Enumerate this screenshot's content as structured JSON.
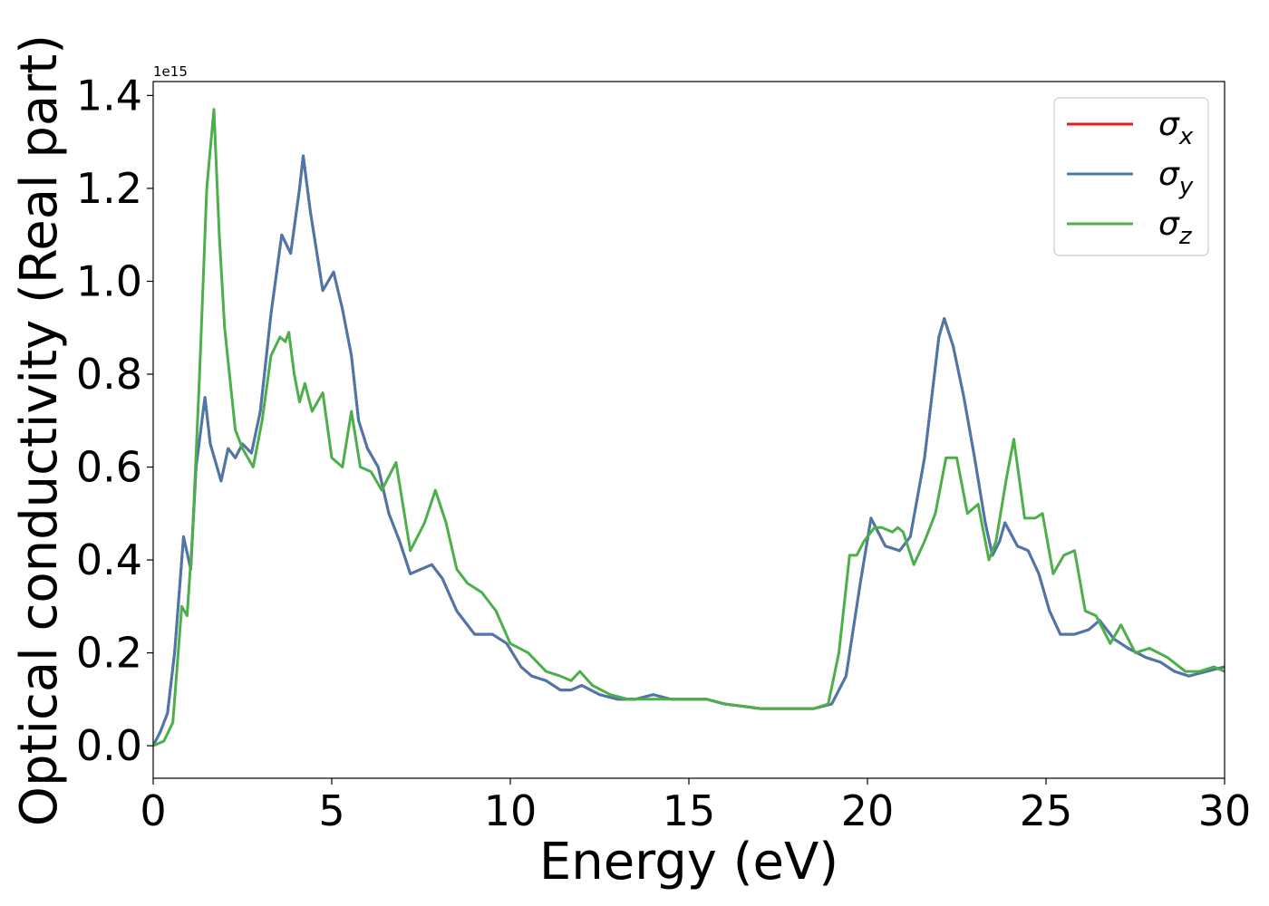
{
  "chart_data": {
    "type": "line",
    "xlabel": "Energy (eV)",
    "ylabel": "Optical conductivity (Real part)",
    "y_offset_label": "1e15",
    "xlim": [
      0,
      30
    ],
    "ylim": [
      -0.07,
      1.43
    ],
    "x_ticks": [
      0,
      5,
      10,
      15,
      20,
      25,
      30
    ],
    "x_tick_labels": [
      "0",
      "5",
      "10",
      "15",
      "20",
      "25",
      "30"
    ],
    "y_ticks": [
      0.0,
      0.2,
      0.4,
      0.6,
      0.8,
      1.0,
      1.2,
      1.4
    ],
    "y_tick_labels": [
      "0.0",
      "0.2",
      "0.4",
      "0.6",
      "0.8",
      "1.0",
      "1.2",
      "1.4"
    ],
    "grid": false,
    "legend_position": "top-right",
    "series": [
      {
        "name": "σx",
        "legend_base": "σ",
        "legend_sub": "x",
        "color": "#e41a1c",
        "x": [
          0,
          0.2,
          0.4,
          0.6,
          0.85,
          1.05,
          1.2,
          1.45,
          1.6,
          1.9,
          2.1,
          2.3,
          2.5,
          2.75,
          3.0,
          3.3,
          3.6,
          3.85,
          4.1,
          4.2,
          4.4,
          4.75,
          5.05,
          5.3,
          5.55,
          5.75,
          6.0,
          6.3,
          6.6,
          6.9,
          7.2,
          7.5,
          7.8,
          8.1,
          8.5,
          9.0,
          9.5,
          9.9,
          10.3,
          10.6,
          11.0,
          11.4,
          11.7,
          12.0,
          12.5,
          13.0,
          13.5,
          14.0,
          14.5,
          15.0,
          15.5,
          16.0,
          16.5,
          17.0,
          17.5,
          18.0,
          18.5,
          19.0,
          19.4,
          19.8,
          20.1,
          20.3,
          20.5,
          20.9,
          21.2,
          21.6,
          22.0,
          22.15,
          22.4,
          22.7,
          23.0,
          23.3,
          23.5,
          23.7,
          23.85,
          24.2,
          24.5,
          24.8,
          25.1,
          25.4,
          25.8,
          26.2,
          26.5,
          26.9,
          27.3,
          27.8,
          28.2,
          28.6,
          29.0,
          29.5,
          30.0
        ],
        "values": [
          0.0,
          0.03,
          0.07,
          0.2,
          0.45,
          0.38,
          0.6,
          0.75,
          0.65,
          0.57,
          0.64,
          0.62,
          0.65,
          0.63,
          0.72,
          0.93,
          1.1,
          1.06,
          1.2,
          1.27,
          1.15,
          0.98,
          1.02,
          0.94,
          0.84,
          0.7,
          0.64,
          0.6,
          0.5,
          0.44,
          0.37,
          0.38,
          0.39,
          0.36,
          0.29,
          0.24,
          0.24,
          0.22,
          0.17,
          0.15,
          0.14,
          0.12,
          0.12,
          0.13,
          0.11,
          0.1,
          0.1,
          0.11,
          0.1,
          0.1,
          0.1,
          0.09,
          0.085,
          0.08,
          0.08,
          0.08,
          0.08,
          0.09,
          0.15,
          0.35,
          0.49,
          0.46,
          0.43,
          0.42,
          0.45,
          0.62,
          0.88,
          0.92,
          0.86,
          0.75,
          0.62,
          0.48,
          0.41,
          0.44,
          0.48,
          0.43,
          0.42,
          0.37,
          0.29,
          0.24,
          0.24,
          0.25,
          0.27,
          0.23,
          0.21,
          0.19,
          0.18,
          0.16,
          0.15,
          0.16,
          0.17
        ]
      },
      {
        "name": "σy",
        "legend_base": "σ",
        "legend_sub": "y",
        "color": "#4a78aa",
        "x": [
          0,
          0.2,
          0.4,
          0.6,
          0.85,
          1.05,
          1.2,
          1.45,
          1.6,
          1.9,
          2.1,
          2.3,
          2.5,
          2.75,
          3.0,
          3.3,
          3.6,
          3.85,
          4.1,
          4.2,
          4.4,
          4.75,
          5.05,
          5.3,
          5.55,
          5.75,
          6.0,
          6.3,
          6.6,
          6.9,
          7.2,
          7.5,
          7.8,
          8.1,
          8.5,
          9.0,
          9.5,
          9.9,
          10.3,
          10.6,
          11.0,
          11.4,
          11.7,
          12.0,
          12.5,
          13.0,
          13.5,
          14.0,
          14.5,
          15.0,
          15.5,
          16.0,
          16.5,
          17.0,
          17.5,
          18.0,
          18.5,
          19.0,
          19.4,
          19.8,
          20.1,
          20.3,
          20.5,
          20.9,
          21.2,
          21.6,
          22.0,
          22.15,
          22.4,
          22.7,
          23.0,
          23.3,
          23.5,
          23.7,
          23.85,
          24.2,
          24.5,
          24.8,
          25.1,
          25.4,
          25.8,
          26.2,
          26.5,
          26.9,
          27.3,
          27.8,
          28.2,
          28.6,
          29.0,
          29.5,
          30.0
        ],
        "values": [
          0.0,
          0.03,
          0.07,
          0.2,
          0.45,
          0.38,
          0.6,
          0.75,
          0.65,
          0.57,
          0.64,
          0.62,
          0.65,
          0.63,
          0.72,
          0.93,
          1.1,
          1.06,
          1.2,
          1.27,
          1.15,
          0.98,
          1.02,
          0.94,
          0.84,
          0.7,
          0.64,
          0.6,
          0.5,
          0.44,
          0.37,
          0.38,
          0.39,
          0.36,
          0.29,
          0.24,
          0.24,
          0.22,
          0.17,
          0.15,
          0.14,
          0.12,
          0.12,
          0.13,
          0.11,
          0.1,
          0.1,
          0.11,
          0.1,
          0.1,
          0.1,
          0.09,
          0.085,
          0.08,
          0.08,
          0.08,
          0.08,
          0.09,
          0.15,
          0.35,
          0.49,
          0.46,
          0.43,
          0.42,
          0.45,
          0.62,
          0.88,
          0.92,
          0.86,
          0.75,
          0.62,
          0.48,
          0.41,
          0.44,
          0.48,
          0.43,
          0.42,
          0.37,
          0.29,
          0.24,
          0.24,
          0.25,
          0.27,
          0.23,
          0.21,
          0.19,
          0.18,
          0.16,
          0.15,
          0.16,
          0.17
        ]
      },
      {
        "name": "σz",
        "legend_base": "σ",
        "legend_sub": "z",
        "color": "#4daf4a",
        "x": [
          0,
          0.3,
          0.55,
          0.8,
          0.95,
          1.1,
          1.3,
          1.5,
          1.7,
          1.85,
          2.0,
          2.3,
          2.5,
          2.8,
          3.05,
          3.3,
          3.55,
          3.7,
          3.8,
          3.95,
          4.1,
          4.25,
          4.45,
          4.75,
          5.0,
          5.3,
          5.55,
          5.8,
          6.1,
          6.4,
          6.8,
          7.2,
          7.6,
          7.9,
          8.2,
          8.5,
          8.8,
          9.2,
          9.6,
          10.0,
          10.5,
          11.0,
          11.4,
          11.7,
          11.95,
          12.3,
          12.8,
          13.3,
          13.8,
          14.5,
          15.0,
          15.5,
          16.0,
          16.5,
          17.0,
          17.5,
          18.0,
          18.5,
          18.9,
          19.2,
          19.5,
          19.7,
          19.9,
          20.2,
          20.4,
          20.7,
          20.85,
          21.0,
          21.3,
          21.6,
          21.9,
          22.2,
          22.5,
          22.8,
          23.1,
          23.4,
          23.6,
          23.9,
          24.1,
          24.4,
          24.7,
          24.9,
          25.2,
          25.5,
          25.8,
          26.1,
          26.4,
          26.8,
          27.1,
          27.5,
          27.9,
          28.4,
          28.9,
          29.3,
          29.7,
          30.0
        ],
        "values": [
          0.0,
          0.01,
          0.05,
          0.3,
          0.28,
          0.45,
          0.8,
          1.2,
          1.37,
          1.1,
          0.9,
          0.68,
          0.64,
          0.6,
          0.7,
          0.84,
          0.88,
          0.87,
          0.89,
          0.8,
          0.74,
          0.78,
          0.72,
          0.76,
          0.62,
          0.6,
          0.72,
          0.6,
          0.59,
          0.55,
          0.61,
          0.42,
          0.48,
          0.55,
          0.48,
          0.38,
          0.35,
          0.33,
          0.29,
          0.22,
          0.2,
          0.16,
          0.15,
          0.14,
          0.16,
          0.13,
          0.11,
          0.1,
          0.1,
          0.1,
          0.1,
          0.1,
          0.09,
          0.085,
          0.08,
          0.08,
          0.08,
          0.08,
          0.09,
          0.2,
          0.41,
          0.41,
          0.44,
          0.47,
          0.47,
          0.46,
          0.47,
          0.46,
          0.39,
          0.44,
          0.5,
          0.62,
          0.62,
          0.5,
          0.52,
          0.4,
          0.44,
          0.58,
          0.66,
          0.49,
          0.49,
          0.5,
          0.37,
          0.41,
          0.42,
          0.29,
          0.28,
          0.22,
          0.26,
          0.2,
          0.21,
          0.19,
          0.16,
          0.16,
          0.17,
          0.16
        ]
      }
    ]
  }
}
